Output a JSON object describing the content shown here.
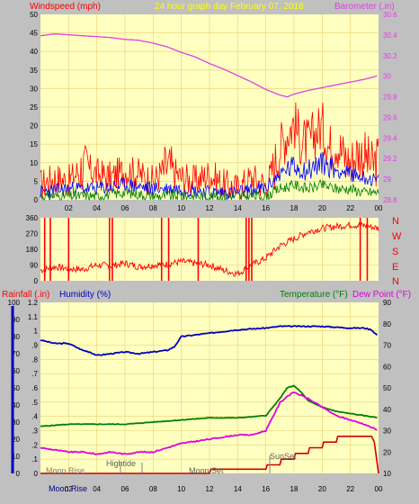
{
  "header": {
    "left_label": "Windspeed (mph)",
    "center_label": "24 hour graph day   February 07, 2018",
    "right_label": "Barometer (.in)"
  },
  "lower_header": {
    "rainfall_label": "Rainfall (.in)",
    "humidity_label": "Humidity (%)",
    "temperature_label": "Temperature (°F)",
    "dewpoint_label": "Dew Point (°F)"
  },
  "compass_letters": [
    "N",
    "W",
    "S",
    "E",
    "N"
  ],
  "colors": {
    "background": "#c0c0c0",
    "plot": "#ffffc0",
    "grid": "#e8d070",
    "header_text": "#ffff00",
    "barometer": "#e040e0",
    "windspeed": "#ff0000",
    "gust_mid": "#0000ff",
    "wind_low": "#008000",
    "direction": "#ff0000",
    "humidity": "#0000c0",
    "temperature": "#008000",
    "dewpoint": "#e000e0",
    "rainfall": "#d00000",
    "left_labels": "#ff0000",
    "axis_text": "#000000"
  },
  "annotations": [
    "Moon Rise",
    "Hightide",
    "Moon Set",
    "SunSet",
    "Moon Rise"
  ],
  "chart_data": [
    {
      "type": "line",
      "name": "wind-barometer",
      "x_ticks": [
        "02",
        "04",
        "06",
        "08",
        "10",
        "12",
        "14",
        "16",
        "18",
        "20",
        "22",
        "00"
      ],
      "y_left_ticks": [
        "0",
        "5",
        "10",
        "15",
        "20",
        "25",
        "30",
        "35",
        "40",
        "45",
        "50"
      ],
      "y_right_ticks": [
        "28.8",
        "29",
        "29.2",
        "29.4",
        "29.6",
        "29.8",
        "30",
        "30.2",
        "30.4",
        "30.6"
      ],
      "ylim_left": [
        0,
        50
      ],
      "ylim_right": [
        28.7,
        30.7
      ],
      "xlim": [
        0,
        24
      ],
      "series": [
        {
          "name": "Barometer (.in)",
          "axis": "right",
          "x": [
            0,
            1,
            2,
            3,
            4,
            5,
            6,
            7,
            8,
            9,
            10,
            11,
            12,
            13,
            14,
            15,
            16,
            17,
            17.5,
            18,
            19,
            20,
            21,
            22,
            23,
            24
          ],
          "values": [
            30.47,
            30.49,
            30.48,
            30.47,
            30.46,
            30.45,
            30.43,
            30.42,
            30.39,
            30.35,
            30.29,
            30.24,
            30.17,
            30.11,
            30.04,
            29.97,
            29.89,
            29.83,
            29.81,
            29.84,
            29.88,
            29.91,
            29.94,
            29.97,
            30.0,
            30.04
          ]
        },
        {
          "name": "Windspeed (mph)",
          "axis": "left",
          "x": [
            0,
            1,
            2,
            3,
            4,
            5,
            6,
            7,
            8,
            9,
            10,
            11,
            12,
            13,
            14,
            15,
            16,
            16.5,
            17,
            17.5,
            18,
            18.5,
            19,
            19.5,
            20,
            20.5,
            21,
            21.5,
            22,
            22.5,
            23,
            23.5,
            24
          ],
          "values": [
            4,
            6,
            5,
            9,
            7,
            6,
            8,
            7,
            5,
            9,
            6,
            5,
            7,
            4,
            3,
            6,
            4,
            8,
            14,
            18,
            21,
            16,
            15,
            18,
            20,
            14,
            16,
            12,
            10,
            13,
            12,
            9,
            11
          ]
        },
        {
          "x": [
            0,
            2,
            4,
            6,
            8,
            10,
            12,
            14,
            16,
            17,
            18,
            19,
            20,
            21,
            22,
            23,
            24
          ],
          "values": [
            2,
            3,
            3,
            4,
            3,
            3,
            2,
            2,
            3,
            7,
            9,
            8,
            10,
            8,
            7,
            6,
            5
          ]
        },
        {
          "x": [
            0,
            2,
            4,
            6,
            8,
            10,
            12,
            14,
            16,
            17,
            18,
            19,
            20,
            21,
            22,
            23,
            24
          ],
          "values": [
            1,
            1,
            1,
            2,
            1,
            1,
            1,
            1,
            1,
            3,
            4,
            3,
            4,
            3,
            3,
            2,
            2
          ]
        }
      ]
    },
    {
      "type": "line",
      "name": "wind-direction",
      "y_ticks": [
        "0",
        "90",
        "180",
        "270",
        "360"
      ],
      "ylim": [
        0,
        360
      ],
      "xlim": [
        0,
        24
      ],
      "series": [
        {
          "x": [
            0,
            1,
            2,
            3,
            4,
            5,
            6,
            7,
            8,
            9,
            10,
            11,
            12,
            13,
            14,
            15,
            16,
            17,
            18,
            19,
            20,
            21,
            22,
            23,
            24
          ],
          "values": [
            60,
            80,
            70,
            65,
            90,
            85,
            100,
            80,
            90,
            95,
            110,
            100,
            90,
            60,
            40,
            90,
            130,
            200,
            240,
            280,
            300,
            310,
            320,
            315,
            300
          ],
          "spikes_x": [
            0.3,
            0.7,
            2.0,
            4.9,
            5.1,
            8.6,
            9.1,
            11.2,
            14.6,
            14.8,
            15.0,
            22.7,
            23.2
          ]
        }
      ]
    },
    {
      "type": "line",
      "name": "humidity-temperature",
      "y_left_ticks": [
        "0",
        "10",
        "20",
        "30",
        "40",
        "50",
        "60",
        "70",
        "80",
        "90",
        "100"
      ],
      "rain_ticks": [
        "0",
        ".1",
        ".2",
        ".3",
        ".4",
        ".5",
        ".6",
        ".7",
        ".8",
        ".9",
        "1",
        "1.1",
        "1.2"
      ],
      "y_right_ticks": [
        "10",
        "20",
        "30",
        "40",
        "50",
        "60",
        "70",
        "80",
        "90"
      ],
      "ylim_left": [
        0,
        100
      ],
      "ylim_rain": [
        0,
        1.2
      ],
      "ylim_right": [
        10,
        90
      ],
      "xlim": [
        0,
        24
      ],
      "series": [
        {
          "name": "Humidity (%)",
          "axis": "left",
          "x": [
            0,
            1,
            2,
            3,
            3.5,
            4,
            5,
            6,
            7,
            8,
            9,
            9.5,
            10,
            11,
            12,
            14,
            16,
            17,
            18,
            20,
            22,
            23,
            23.5,
            24
          ],
          "values": [
            78,
            76,
            76,
            72,
            71,
            69,
            70,
            71,
            70,
            71,
            72,
            74,
            80,
            81,
            82,
            84,
            85,
            86,
            86,
            86,
            85,
            85,
            84,
            80
          ]
        },
        {
          "name": "Temperature (°F)",
          "axis": "right",
          "x": [
            0,
            2,
            4,
            6,
            8,
            10,
            12,
            14,
            16,
            17,
            17.5,
            18,
            18.5,
            19,
            20,
            21,
            22,
            23,
            24
          ],
          "values": [
            32,
            33,
            33,
            33,
            34,
            35,
            36,
            36,
            37,
            45,
            50,
            51,
            48,
            44,
            41,
            39,
            38,
            37,
            36
          ]
        },
        {
          "name": "Dew Point (°F)",
          "axis": "right",
          "x": [
            0,
            1,
            2,
            3,
            4,
            5,
            6,
            7,
            8,
            9,
            10,
            11,
            12,
            13,
            14,
            15,
            16,
            17,
            17.5,
            18,
            19,
            20,
            21,
            22,
            23,
            24
          ],
          "values": [
            22,
            21,
            20,
            20,
            19,
            20,
            19,
            20,
            20,
            22,
            24,
            25,
            26,
            27,
            28,
            28,
            30,
            43,
            46,
            48,
            45,
            41,
            37,
            35,
            33,
            30
          ]
        },
        {
          "name": "Rainfall (.in)",
          "axis": "rain",
          "x": [
            0,
            10,
            12,
            12.1,
            16,
            16.1,
            17,
            17.1,
            18,
            18.1,
            19,
            19.1,
            20,
            20.1,
            21,
            21.1,
            22.5,
            23.5,
            23.7,
            24
          ],
          "values": [
            0,
            0,
            0,
            0.03,
            0.03,
            0.06,
            0.06,
            0.1,
            0.1,
            0.14,
            0.14,
            0.18,
            0.18,
            0.22,
            0.22,
            0.26,
            0.26,
            0.26,
            0.22,
            0
          ]
        }
      ]
    }
  ]
}
